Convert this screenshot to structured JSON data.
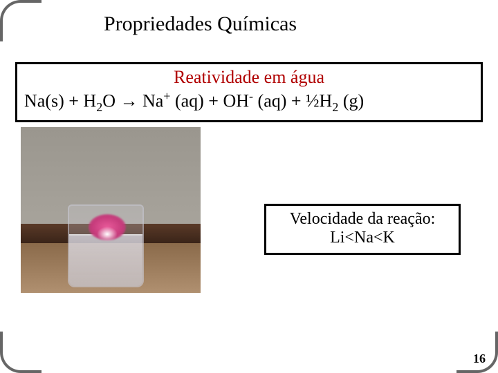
{
  "slide": {
    "title": "Propriedades Químicas",
    "page_number": "16",
    "background_color": "#ffffff",
    "border_color": "#666666"
  },
  "equation_box": {
    "title": "Reatividade em água",
    "title_color": "#b00000",
    "equation_plain": "Na(s) + H2O → Na+ (aq) + OH- (aq) + ½H2 (g)",
    "border_color": "#000000",
    "fontsize": 26
  },
  "velocity_box": {
    "line1": "Velocidade da reação:",
    "line2": "Li<Na<K",
    "border_color": "#000000",
    "fontsize": 24
  },
  "photo": {
    "description": "beaker with pink sodium-water reaction on brown floor against grey wall",
    "wall_color": "#a8a49c",
    "floor_color": "#8a6a4a",
    "baseboard_color": "#3a2418",
    "reaction_color": "#e85a9a"
  }
}
